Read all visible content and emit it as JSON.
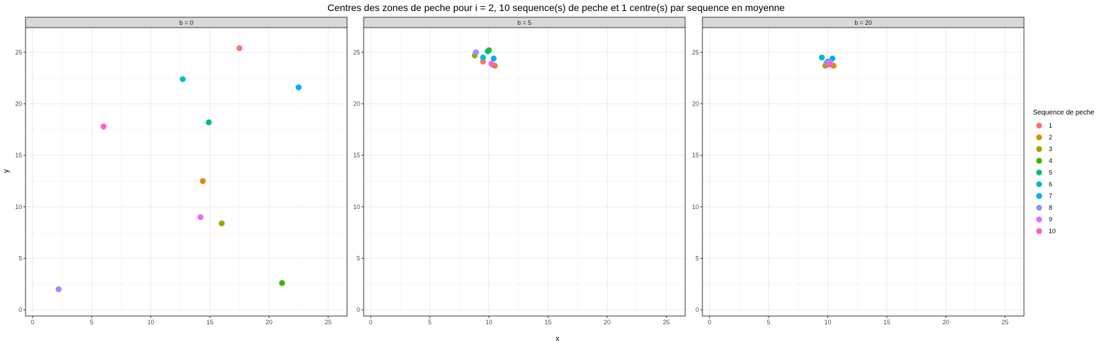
{
  "chart_data": {
    "type": "scatter",
    "title": "Centres des zones de peche pour i = 2, 10 sequence(s) de peche et 1 centre(s) par sequence en moyenne",
    "xlabel": "x",
    "ylabel": "y",
    "xlim": [
      -0.6,
      26.6
    ],
    "ylim": [
      -0.6,
      27.4
    ],
    "x_ticks": [
      0,
      5,
      10,
      15,
      20,
      25
    ],
    "y_ticks": [
      0,
      5,
      10,
      15,
      20,
      25
    ],
    "grid": true,
    "legend": {
      "title": "Sequence de peche",
      "placement": "right",
      "items": [
        {
          "label": "1",
          "color": "#F8766D"
        },
        {
          "label": "2",
          "color": "#D89000"
        },
        {
          "label": "3",
          "color": "#A3A500"
        },
        {
          "label": "4",
          "color": "#39B600"
        },
        {
          "label": "5",
          "color": "#00BF7D"
        },
        {
          "label": "6",
          "color": "#00BFC4"
        },
        {
          "label": "7",
          "color": "#00B0F6"
        },
        {
          "label": "8",
          "color": "#9590FF"
        },
        {
          "label": "9",
          "color": "#E76BF3"
        },
        {
          "label": "10",
          "color": "#FF62BC"
        }
      ]
    },
    "panels": [
      {
        "label": "b = 0",
        "points": [
          {
            "seq": "1",
            "x": 17.5,
            "y": 25.4
          },
          {
            "seq": "2",
            "x": 14.4,
            "y": 12.5
          },
          {
            "seq": "3",
            "x": 16.0,
            "y": 8.4
          },
          {
            "seq": "4",
            "x": 21.1,
            "y": 2.6
          },
          {
            "seq": "5",
            "x": 14.9,
            "y": 18.2
          },
          {
            "seq": "6",
            "x": 12.7,
            "y": 22.4
          },
          {
            "seq": "7",
            "x": 22.5,
            "y": 21.6
          },
          {
            "seq": "8",
            "x": 2.2,
            "y": 2.0
          },
          {
            "seq": "9",
            "x": 14.2,
            "y": 9.0
          },
          {
            "seq": "10",
            "x": 6.0,
            "y": 17.8
          }
        ]
      },
      {
        "label": "b = 5",
        "points": [
          {
            "seq": "1",
            "x": 9.5,
            "y": 24.1
          },
          {
            "seq": "2",
            "x": 10.5,
            "y": 23.7
          },
          {
            "seq": "3",
            "x": 8.8,
            "y": 24.7
          },
          {
            "seq": "4",
            "x": 10.0,
            "y": 25.2
          },
          {
            "seq": "5",
            "x": 9.9,
            "y": 25.1
          },
          {
            "seq": "6",
            "x": 9.5,
            "y": 24.5
          },
          {
            "seq": "7",
            "x": 10.4,
            "y": 24.4
          },
          {
            "seq": "8",
            "x": 8.9,
            "y": 25.0
          },
          {
            "seq": "9",
            "x": 10.2,
            "y": 23.9
          },
          {
            "seq": "10",
            "x": 10.3,
            "y": 23.8
          }
        ]
      },
      {
        "label": "b = 20",
        "points": [
          {
            "seq": "1",
            "x": 10.1,
            "y": 23.9
          },
          {
            "seq": "2",
            "x": 10.5,
            "y": 23.7
          },
          {
            "seq": "3",
            "x": 9.8,
            "y": 23.7
          },
          {
            "seq": "4",
            "x": 10.0,
            "y": 24.0
          },
          {
            "seq": "5",
            "x": 10.0,
            "y": 24.1
          },
          {
            "seq": "6",
            "x": 9.5,
            "y": 24.5
          },
          {
            "seq": "7",
            "x": 10.4,
            "y": 24.4
          },
          {
            "seq": "8",
            "x": 9.9,
            "y": 24.0
          },
          {
            "seq": "9",
            "x": 10.2,
            "y": 24.0
          },
          {
            "seq": "10",
            "x": 10.2,
            "y": 23.8
          }
        ]
      }
    ]
  }
}
